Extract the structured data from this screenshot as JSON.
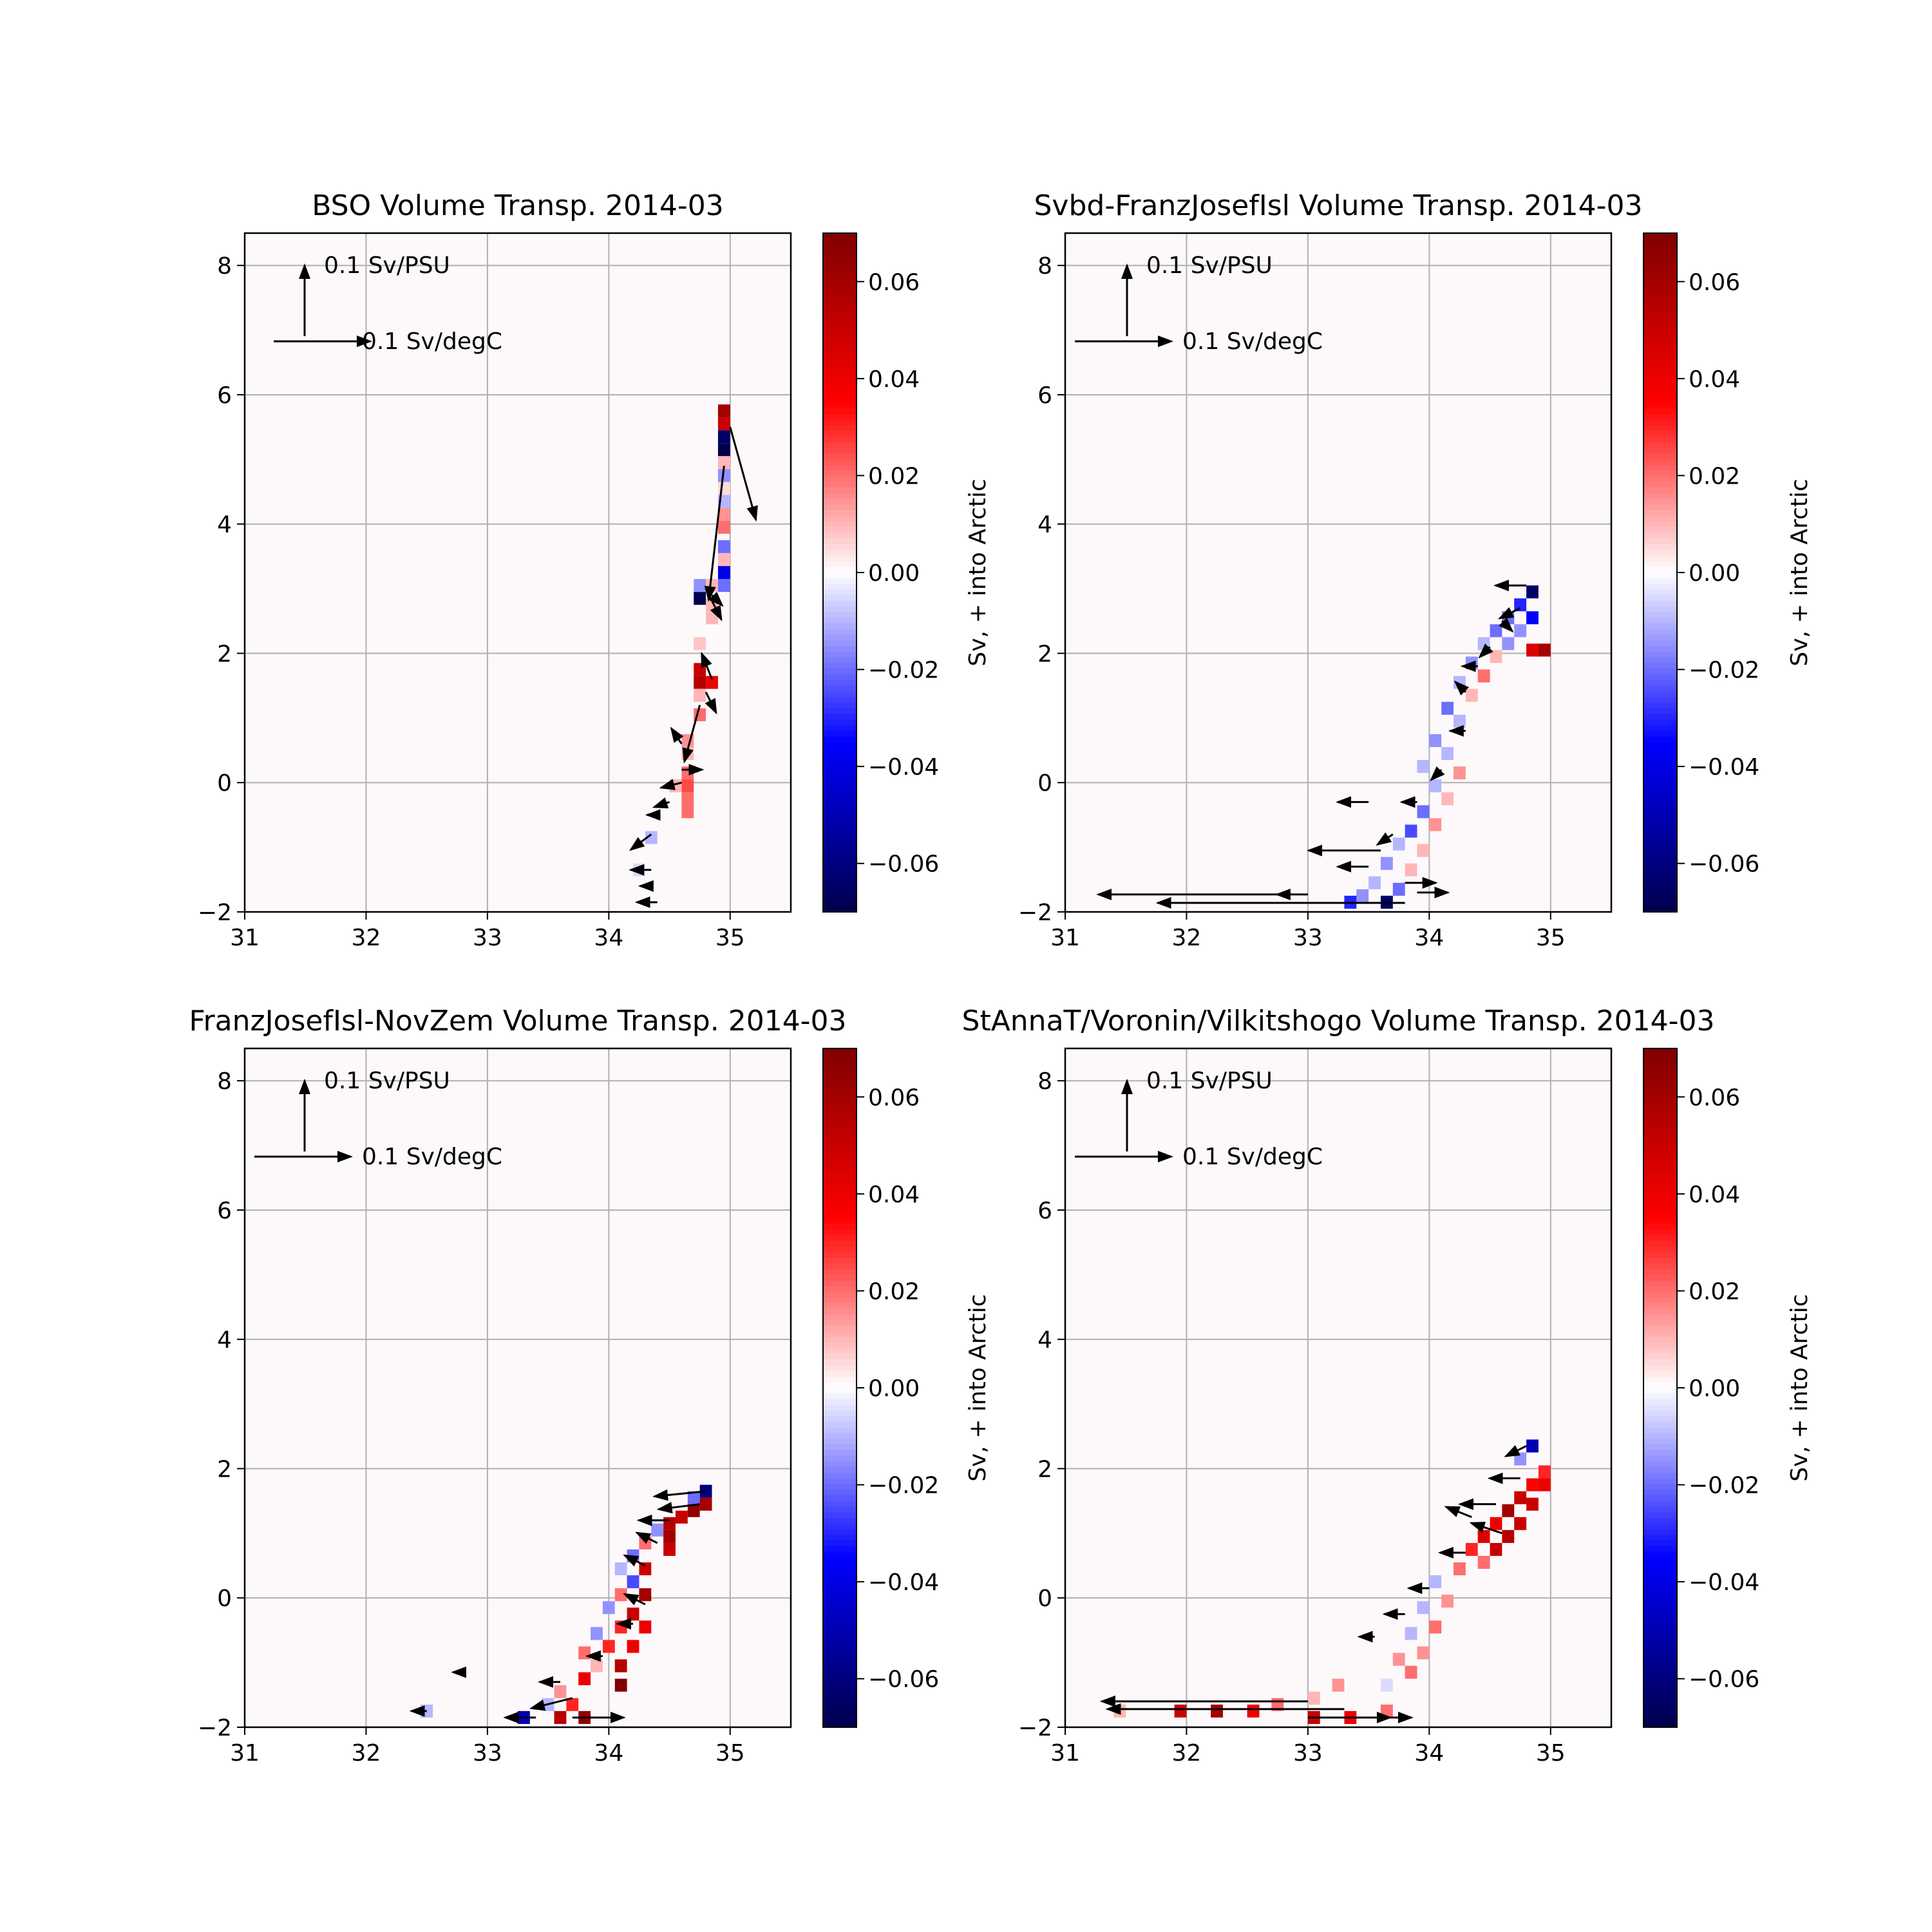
{
  "figure": {
    "colorbar_ticks": [
      "0.06",
      "0.04",
      "0.02",
      "0.00",
      "−0.02",
      "−0.04",
      "−0.06"
    ],
    "colorbar_tick_values": [
      0.06,
      0.04,
      0.02,
      0.0,
      -0.02,
      -0.04,
      -0.06
    ],
    "colorbar_range": [
      -0.07,
      0.07
    ],
    "colormap": "seismic",
    "colorbar_label": "Sv, + into Arctic",
    "reference_arrows": {
      "salinity": "0.1 Sv/PSU",
      "temperature": "0.1 Sv/degC"
    }
  },
  "chart_data": [
    {
      "type": "heatmap",
      "title": "BSO Volume Transp. 2014-03",
      "xlim": [
        31,
        35.5
      ],
      "ylim": [
        -2,
        8.5
      ],
      "xticks": [
        "31",
        "32",
        "33",
        "34",
        "35"
      ],
      "yticks": [
        "8",
        "6",
        "4",
        "2",
        "0",
        "−2"
      ],
      "xtick_values": [
        31,
        32,
        33,
        34,
        35
      ],
      "ytick_values": [
        8,
        6,
        4,
        2,
        0,
        -2
      ],
      "grid": true,
      "cells": [
        [
          34.95,
          5.75,
          0.06
        ],
        [
          34.95,
          5.55,
          0.05
        ],
        [
          34.95,
          5.35,
          -0.065
        ],
        [
          34.95,
          5.15,
          -0.07
        ],
        [
          34.95,
          4.95,
          0.01
        ],
        [
          34.95,
          4.75,
          -0.015
        ],
        [
          34.95,
          4.55,
          0.005
        ],
        [
          34.95,
          4.35,
          -0.01
        ],
        [
          34.95,
          4.15,
          0.015
        ],
        [
          34.95,
          3.95,
          0.02
        ],
        [
          34.95,
          3.65,
          -0.02
        ],
        [
          34.95,
          3.45,
          0.01
        ],
        [
          34.95,
          3.25,
          -0.04
        ],
        [
          34.95,
          3.05,
          -0.02
        ],
        [
          34.85,
          3.05,
          0.01
        ],
        [
          34.75,
          2.85,
          -0.07
        ],
        [
          34.75,
          3.05,
          -0.015
        ],
        [
          34.85,
          2.75,
          0.01
        ],
        [
          34.85,
          2.55,
          0.01
        ],
        [
          34.75,
          2.15,
          0.008
        ],
        [
          34.75,
          1.75,
          0.05
        ],
        [
          34.75,
          1.55,
          0.055
        ],
        [
          34.85,
          1.55,
          0.04
        ],
        [
          34.75,
          1.35,
          0.01
        ],
        [
          34.75,
          1.05,
          0.02
        ],
        [
          34.65,
          0.65,
          0.015
        ],
        [
          34.65,
          0.45,
          0.01
        ],
        [
          34.65,
          0.15,
          0.02
        ],
        [
          34.65,
          -0.05,
          0.025
        ],
        [
          34.65,
          -0.25,
          0.02
        ],
        [
          34.65,
          -0.45,
          0.02
        ],
        [
          34.55,
          -0.05,
          0.01
        ],
        [
          34.35,
          -0.85,
          -0.01
        ],
        [
          34.25,
          -1.35,
          -0.005
        ]
      ],
      "arrows": [
        [
          35.0,
          5.5,
          0.25,
          -0.9
        ],
        [
          34.95,
          4.9,
          -0.15,
          -1.3
        ],
        [
          34.8,
          3.0,
          0.15,
          -0.3
        ],
        [
          34.85,
          2.9,
          0.1,
          -0.1
        ],
        [
          34.85,
          1.6,
          -0.1,
          0.25
        ],
        [
          34.8,
          1.4,
          0.1,
          -0.2
        ],
        [
          34.75,
          1.2,
          -0.15,
          -0.55
        ],
        [
          34.6,
          0.6,
          -0.1,
          0.15
        ],
        [
          34.6,
          0.2,
          0.2,
          0.0
        ],
        [
          34.6,
          0.0,
          -0.2,
          -0.05
        ],
        [
          34.5,
          -0.3,
          -0.15,
          -0.05
        ],
        [
          34.4,
          -0.5,
          -0.1,
          0.0
        ],
        [
          34.35,
          -0.8,
          -0.2,
          -0.15
        ],
        [
          34.35,
          -1.35,
          -0.2,
          0.0
        ],
        [
          34.4,
          -1.85,
          -0.2,
          0.0
        ],
        [
          34.3,
          -1.6,
          -0.05,
          0.0
        ]
      ]
    },
    {
      "type": "heatmap",
      "title": "Svbd-FranzJosefIsl Volume Transp. 2014-03",
      "xlim": [
        31,
        35.5
      ],
      "ylim": [
        -2,
        8.5
      ],
      "xticks": [
        "31",
        "32",
        "33",
        "34",
        "35"
      ],
      "yticks": [
        "8",
        "6",
        "4",
        "2",
        "0",
        "−2"
      ],
      "xtick_values": [
        31,
        32,
        33,
        34,
        35
      ],
      "ytick_values": [
        8,
        6,
        4,
        2,
        0,
        -2
      ],
      "grid": true,
      "cells": [
        [
          34.85,
          2.95,
          -0.065
        ],
        [
          34.75,
          2.75,
          -0.03
        ],
        [
          34.85,
          2.55,
          -0.035
        ],
        [
          34.65,
          2.55,
          -0.02
        ],
        [
          34.55,
          2.35,
          -0.02
        ],
        [
          34.75,
          2.35,
          -0.015
        ],
        [
          34.95,
          2.05,
          0.06
        ],
        [
          34.85,
          2.05,
          0.045
        ],
        [
          34.65,
          2.15,
          -0.015
        ],
        [
          34.45,
          2.15,
          -0.01
        ],
        [
          34.55,
          1.95,
          0.01
        ],
        [
          34.35,
          1.85,
          -0.015
        ],
        [
          34.45,
          1.65,
          0.02
        ],
        [
          34.25,
          1.55,
          -0.01
        ],
        [
          34.35,
          1.35,
          0.01
        ],
        [
          34.15,
          1.15,
          -0.02
        ],
        [
          34.25,
          0.95,
          -0.01
        ],
        [
          34.05,
          0.65,
          -0.015
        ],
        [
          34.15,
          0.45,
          -0.01
        ],
        [
          34.25,
          0.15,
          0.015
        ],
        [
          33.95,
          0.25,
          -0.01
        ],
        [
          34.05,
          -0.05,
          -0.01
        ],
        [
          34.15,
          -0.25,
          0.01
        ],
        [
          33.95,
          -0.45,
          -0.02
        ],
        [
          34.05,
          -0.65,
          0.015
        ],
        [
          33.85,
          -0.75,
          -0.025
        ],
        [
          33.75,
          -0.95,
          -0.01
        ],
        [
          33.95,
          -1.05,
          0.01
        ],
        [
          33.65,
          -1.25,
          -0.015
        ],
        [
          33.85,
          -1.35,
          0.01
        ],
        [
          33.55,
          -1.55,
          -0.01
        ],
        [
          33.75,
          -1.65,
          -0.02
        ],
        [
          33.45,
          -1.75,
          -0.015
        ],
        [
          33.65,
          -1.85,
          -0.065
        ],
        [
          33.35,
          -1.85,
          -0.03
        ]
      ],
      "arrows": [
        [
          34.8,
          3.05,
          -0.3,
          0.0
        ],
        [
          34.75,
          2.7,
          -0.2,
          -0.1
        ],
        [
          34.6,
          2.5,
          0.1,
          -0.1
        ],
        [
          34.5,
          2.1,
          -0.1,
          -0.1
        ],
        [
          34.4,
          1.8,
          -0.15,
          0.0
        ],
        [
          34.3,
          1.4,
          -0.1,
          0.1
        ],
        [
          34.3,
          0.8,
          -0.15,
          0.0
        ],
        [
          34.1,
          0.2,
          -0.1,
          -0.1
        ],
        [
          33.9,
          -0.3,
          -0.15,
          0.0
        ],
        [
          33.7,
          -0.8,
          -0.15,
          -0.1
        ],
        [
          33.6,
          -1.05,
          -0.7,
          0.0
        ],
        [
          33.5,
          -1.3,
          -0.3,
          0.0
        ],
        [
          33.8,
          -1.55,
          0.3,
          0.0
        ],
        [
          33.9,
          -1.7,
          0.3,
          0.0
        ],
        [
          32.8,
          -1.73,
          -1.8,
          0.0
        ],
        [
          33.8,
          -1.86,
          -2.4,
          0.0
        ],
        [
          33.0,
          -1.73,
          -0.3,
          0.0
        ],
        [
          33.5,
          -0.3,
          -0.3,
          0.0
        ]
      ]
    },
    {
      "type": "heatmap",
      "title": "FranzJosefIsl-NovZem Volume Transp. 2014-03",
      "xlim": [
        31,
        35.5
      ],
      "ylim": [
        -2,
        8.5
      ],
      "xticks": [
        "31",
        "32",
        "33",
        "34",
        "35"
      ],
      "yticks": [
        "8",
        "6",
        "4",
        "2",
        "0",
        "−2"
      ],
      "xtick_values": [
        31,
        32,
        33,
        34,
        35
      ],
      "ytick_values": [
        8,
        6,
        4,
        2,
        0,
        -2
      ],
      "grid": true,
      "cells": [
        [
          34.8,
          1.65,
          -0.06
        ],
        [
          34.7,
          1.55,
          -0.02
        ],
        [
          34.8,
          1.45,
          0.06
        ],
        [
          34.7,
          1.35,
          0.065
        ],
        [
          34.6,
          1.25,
          0.05
        ],
        [
          34.5,
          1.15,
          0.055
        ],
        [
          34.4,
          1.05,
          -0.015
        ],
        [
          34.5,
          0.95,
          0.06
        ],
        [
          34.5,
          0.75,
          0.05
        ],
        [
          34.3,
          0.85,
          0.02
        ],
        [
          34.2,
          0.65,
          -0.02
        ],
        [
          34.1,
          0.45,
          -0.01
        ],
        [
          34.3,
          0.45,
          0.05
        ],
        [
          34.2,
          0.25,
          -0.025
        ],
        [
          34.3,
          0.05,
          0.06
        ],
        [
          34.1,
          0.05,
          0.02
        ],
        [
          34.0,
          -0.15,
          -0.015
        ],
        [
          34.2,
          -0.25,
          0.05
        ],
        [
          34.3,
          -0.45,
          0.04
        ],
        [
          34.1,
          -0.45,
          0.03
        ],
        [
          33.9,
          -0.55,
          -0.015
        ],
        [
          34.0,
          -0.75,
          0.03
        ],
        [
          34.2,
          -0.75,
          0.04
        ],
        [
          33.8,
          -0.85,
          0.02
        ],
        [
          33.9,
          -1.05,
          0.01
        ],
        [
          34.1,
          -1.05,
          0.055
        ],
        [
          33.8,
          -1.25,
          0.04
        ],
        [
          34.1,
          -1.35,
          0.07
        ],
        [
          33.6,
          -1.45,
          0.015
        ],
        [
          33.7,
          -1.65,
          0.03
        ],
        [
          33.5,
          -1.65,
          -0.01
        ],
        [
          33.6,
          -1.85,
          0.055
        ],
        [
          33.8,
          -1.85,
          0.065
        ],
        [
          33.3,
          -1.85,
          -0.05
        ],
        [
          32.5,
          -1.75,
          -0.01
        ]
      ],
      "arrows": [
        [
          34.8,
          1.65,
          -0.5,
          -0.05
        ],
        [
          34.75,
          1.45,
          -0.4,
          -0.05
        ],
        [
          34.5,
          1.2,
          -0.3,
          0.0
        ],
        [
          34.4,
          0.85,
          -0.2,
          0.1
        ],
        [
          34.3,
          0.5,
          -0.2,
          0.1
        ],
        [
          34.3,
          -0.1,
          -0.2,
          0.1
        ],
        [
          34.2,
          -0.4,
          -0.15,
          0.0
        ],
        [
          33.95,
          -0.9,
          -0.15,
          0.0
        ],
        [
          33.6,
          -1.3,
          -0.2,
          0.0
        ],
        [
          33.7,
          -1.55,
          -0.4,
          -0.1
        ],
        [
          33.4,
          -1.85,
          -0.3,
          0.0
        ],
        [
          33.7,
          -1.85,
          0.5,
          0.0
        ],
        [
          32.8,
          -1.15,
          -0.1,
          0.0
        ],
        [
          32.5,
          -1.75,
          -0.15,
          0.0
        ]
      ]
    },
    {
      "type": "heatmap",
      "title": "StAnnaT/Voronin/Vilkitshogo Volume Transp. 2014-03",
      "xlim": [
        31,
        35.5
      ],
      "ylim": [
        -2,
        8.5
      ],
      "xticks": [
        "31",
        "32",
        "33",
        "34",
        "35"
      ],
      "yticks": [
        "8",
        "6",
        "4",
        "2",
        "0",
        "−2"
      ],
      "xtick_values": [
        31,
        32,
        33,
        34,
        35
      ],
      "ytick_values": [
        8,
        6,
        4,
        2,
        0,
        -2
      ],
      "grid": true,
      "cells": [
        [
          34.85,
          2.35,
          -0.05
        ],
        [
          34.75,
          2.15,
          -0.015
        ],
        [
          34.95,
          1.95,
          0.03
        ],
        [
          34.95,
          1.75,
          0.04
        ],
        [
          34.85,
          1.75,
          0.035
        ],
        [
          34.75,
          1.55,
          0.05
        ],
        [
          34.85,
          1.45,
          0.05
        ],
        [
          34.65,
          1.35,
          0.06
        ],
        [
          34.75,
          1.15,
          0.05
        ],
        [
          34.55,
          1.15,
          0.04
        ],
        [
          34.65,
          0.95,
          0.055
        ],
        [
          34.45,
          0.95,
          0.045
        ],
        [
          34.55,
          0.75,
          0.05
        ],
        [
          34.35,
          0.75,
          0.03
        ],
        [
          34.45,
          0.55,
          0.02
        ],
        [
          34.25,
          0.45,
          0.02
        ],
        [
          34.05,
          0.25,
          -0.01
        ],
        [
          34.15,
          -0.05,
          0.015
        ],
        [
          33.95,
          -0.15,
          -0.01
        ],
        [
          34.05,
          -0.45,
          0.02
        ],
        [
          33.85,
          -0.55,
          -0.01
        ],
        [
          33.95,
          -0.85,
          0.015
        ],
        [
          33.75,
          -0.95,
          0.015
        ],
        [
          33.85,
          -1.15,
          0.02
        ],
        [
          33.65,
          -1.35,
          -0.005
        ],
        [
          33.25,
          -1.35,
          0.015
        ],
        [
          33.05,
          -1.55,
          0.01
        ],
        [
          32.75,
          -1.65,
          0.02
        ],
        [
          32.55,
          -1.75,
          0.04
        ],
        [
          32.25,
          -1.75,
          0.06
        ],
        [
          31.95,
          -1.75,
          0.05
        ],
        [
          31.45,
          -1.75,
          0.01
        ],
        [
          33.05,
          -1.85,
          0.05
        ],
        [
          33.35,
          -1.85,
          0.04
        ],
        [
          33.65,
          -1.75,
          0.02
        ]
      ],
      "arrows": [
        [
          34.8,
          2.35,
          -0.2,
          -0.1
        ],
        [
          34.75,
          1.85,
          -0.3,
          0.0
        ],
        [
          34.55,
          1.45,
          -0.35,
          0.0
        ],
        [
          34.35,
          1.25,
          -0.25,
          0.1
        ],
        [
          34.6,
          1.0,
          -0.3,
          0.1
        ],
        [
          34.3,
          0.7,
          -0.25,
          0.0
        ],
        [
          34.0,
          0.15,
          -0.2,
          0.0
        ],
        [
          33.8,
          -0.25,
          -0.2,
          0.0
        ],
        [
          33.55,
          -0.6,
          -0.15,
          0.0
        ],
        [
          33.0,
          -1.6,
          -2.0,
          0.0
        ],
        [
          33.3,
          -1.72,
          -2.3,
          0.0
        ],
        [
          33.6,
          -1.85,
          0.3,
          0.0
        ],
        [
          33.0,
          -1.85,
          0.8,
          0.0
        ]
      ]
    }
  ]
}
